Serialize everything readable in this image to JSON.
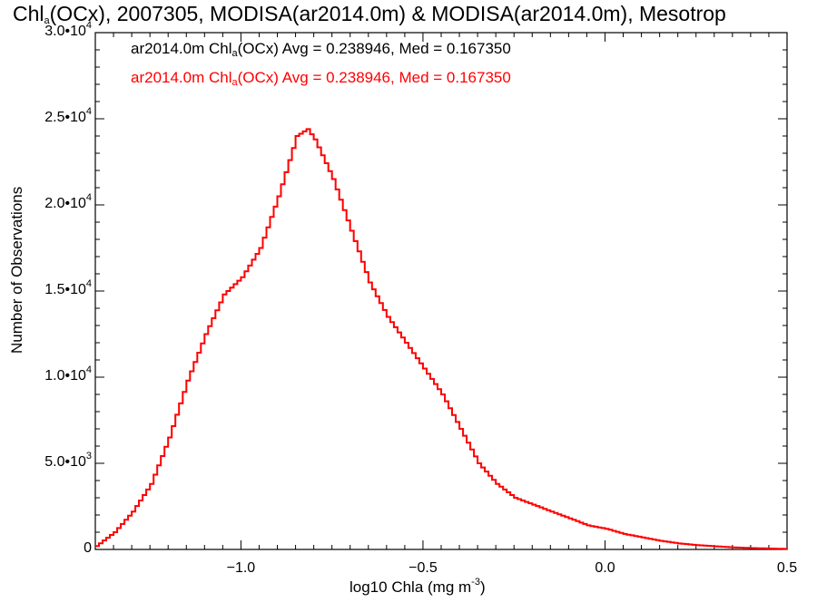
{
  "title": {
    "pre": "Chl",
    "sub": "a",
    "post": "(OCx), 2007305, MODISA(ar2014.0m) & MODISA(ar2014.0m), Mesotrop"
  },
  "chart_data": {
    "type": "line",
    "xlabel": "log10 Chla (mg m",
    "xlabel_sup": "-3",
    "xlabel_end": ")",
    "ylabel": "Number of Observations",
    "xlim": [
      -1.4,
      0.5
    ],
    "ylim": [
      0,
      30000
    ],
    "x_ticks": [
      {
        "value": -1.0,
        "label": "−1.0"
      },
      {
        "value": -0.5,
        "label": "−0.5"
      },
      {
        "value": 0.0,
        "label": "0.0"
      },
      {
        "value": 0.5,
        "label": "0.5"
      }
    ],
    "y_ticks": [
      {
        "value": 0,
        "label": "0",
        "exp": ""
      },
      {
        "value": 5000,
        "label": "5.0•10",
        "exp": "3"
      },
      {
        "value": 10000,
        "label": "1.0•10",
        "exp": "4"
      },
      {
        "value": 15000,
        "label": "1.5•10",
        "exp": "4"
      },
      {
        "value": 20000,
        "label": "2.0•10",
        "exp": "4"
      },
      {
        "value": 25000,
        "label": "2.5•10",
        "exp": "4"
      },
      {
        "value": 30000,
        "label": "3.0•10",
        "exp": "4"
      }
    ],
    "legend": [
      {
        "pre": "ar2014.0m Chl",
        "sub": "a",
        "post": "(OCx) Avg = 0.238946, Med = 0.167350",
        "color": "#000000"
      },
      {
        "pre": "ar2014.0m Chl",
        "sub": "a",
        "post": "(OCx) Avg = 0.238946, Med = 0.167350",
        "color": "#ff0000"
      }
    ],
    "series": [
      {
        "color": "#ff0000",
        "x": [
          -1.4,
          -1.35,
          -1.3,
          -1.25,
          -1.2,
          -1.15,
          -1.1,
          -1.05,
          -1.0,
          -0.95,
          -0.9,
          -0.85,
          -0.82,
          -0.8,
          -0.75,
          -0.7,
          -0.65,
          -0.6,
          -0.55,
          -0.5,
          -0.45,
          -0.4,
          -0.35,
          -0.3,
          -0.25,
          -0.2,
          -0.15,
          -0.1,
          -0.05,
          0.0,
          0.05,
          0.1,
          0.15,
          0.2,
          0.25,
          0.3,
          0.35,
          0.4,
          0.45,
          0.5
        ],
        "y": [
          200,
          1000,
          2200,
          3800,
          6500,
          9800,
          12500,
          14800,
          15800,
          17500,
          20500,
          24000,
          24400,
          23800,
          21500,
          18500,
          15500,
          13500,
          12000,
          10500,
          9000,
          7000,
          5000,
          3800,
          3000,
          2600,
          2200,
          1800,
          1400,
          1200,
          900,
          700,
          500,
          350,
          250,
          180,
          120,
          80,
          50,
          30
        ]
      },
      {
        "color": "#000000",
        "x": [
          -1.4,
          -1.35,
          -1.3,
          -1.25,
          -1.2,
          -1.15,
          -1.1,
          -1.05,
          -1.0,
          -0.95,
          -0.9,
          -0.85,
          -0.82,
          -0.8,
          -0.75,
          -0.7,
          -0.65,
          -0.6,
          -0.55,
          -0.5,
          -0.45,
          -0.4,
          -0.35,
          -0.3,
          -0.25,
          -0.2,
          -0.15,
          -0.1,
          -0.05,
          0.0,
          0.05,
          0.1,
          0.15,
          0.2,
          0.25,
          0.3,
          0.35,
          0.4,
          0.45,
          0.5
        ],
        "y": [
          200,
          1000,
          2200,
          3800,
          6500,
          9800,
          12500,
          14800,
          15800,
          17500,
          20500,
          24000,
          24400,
          23800,
          21500,
          18500,
          15500,
          13500,
          12000,
          10500,
          9000,
          7000,
          5000,
          3800,
          3000,
          2600,
          2200,
          1800,
          1400,
          1200,
          900,
          700,
          500,
          350,
          250,
          180,
          120,
          80,
          50,
          30
        ]
      }
    ]
  }
}
